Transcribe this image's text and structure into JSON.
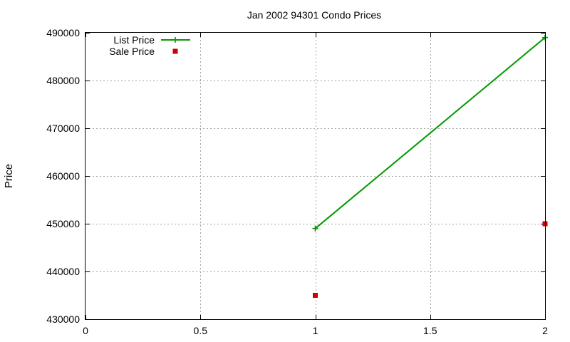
{
  "chart_data": {
    "type": "line",
    "title": "Jan 2002 94301 Condo Prices",
    "xlabel": "",
    "ylabel": "Price",
    "xlim": [
      0,
      2
    ],
    "ylim": [
      430000,
      490000
    ],
    "x_ticks": [
      0,
      0.5,
      1,
      1.5,
      2
    ],
    "x_tick_labels": [
      "0",
      "0.5",
      "1",
      "1.5",
      "2"
    ],
    "y_ticks": [
      430000,
      440000,
      450000,
      460000,
      470000,
      480000,
      490000
    ],
    "y_tick_labels": [
      "430000",
      "440000",
      "450000",
      "460000",
      "470000",
      "480000",
      "490000"
    ],
    "grid": true,
    "legend_position": "top-left",
    "series": [
      {
        "name": "List Price",
        "style": "line+plus-markers",
        "color": "#009900",
        "x": [
          1,
          2
        ],
        "y": [
          449000,
          489000
        ]
      },
      {
        "name": "Sale Price",
        "style": "square-markers",
        "color": "#cc0000",
        "x": [
          1,
          2
        ],
        "y": [
          435000,
          450000
        ]
      }
    ]
  }
}
